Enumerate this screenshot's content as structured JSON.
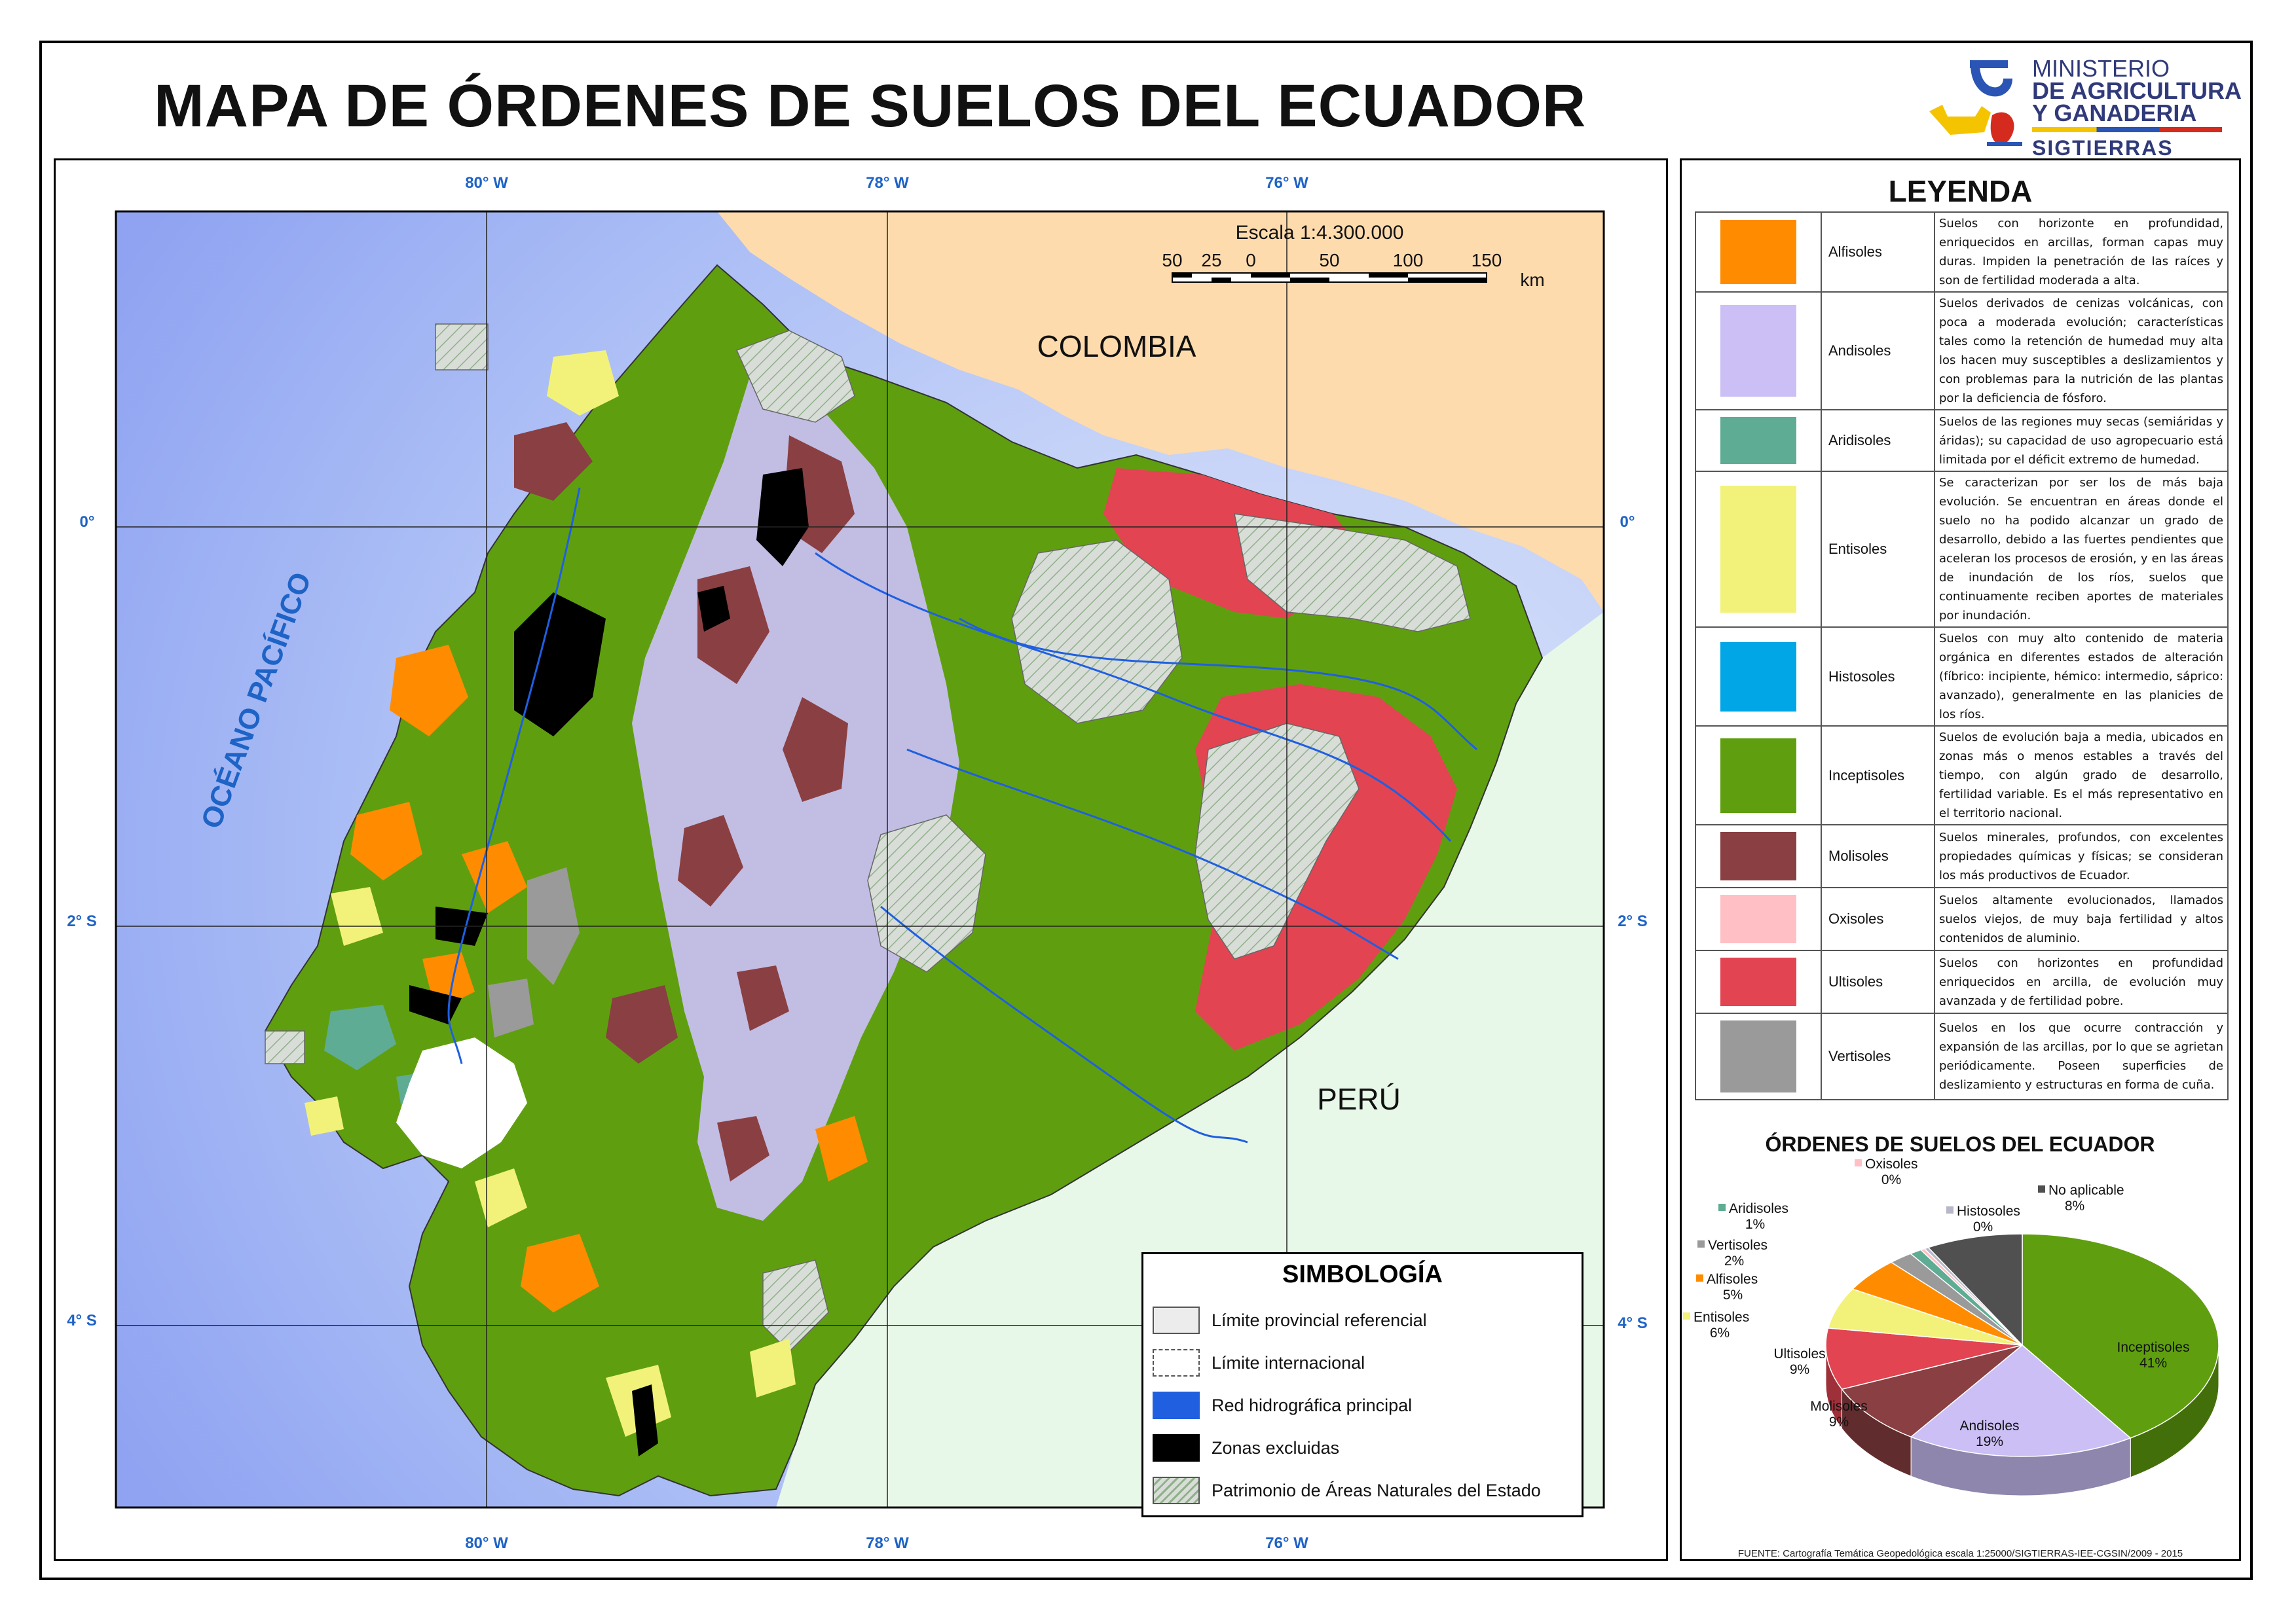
{
  "title": "MAPA DE ÓRDENES DE SUELOS DEL ECUADOR",
  "logo": {
    "line1": "MINISTERIO",
    "line2": "DE AGRICULTURA",
    "line3": "Y GANADERIA",
    "line4": "SIGTIERRAS"
  },
  "map": {
    "graticule_labels": {
      "top": [
        "80° W",
        "78° W",
        "76° W"
      ],
      "bottom": [
        "80° W",
        "78° W",
        "76° W"
      ],
      "left": [
        "0°",
        "2° S",
        "4° S"
      ],
      "right": [
        "0°",
        "2° S",
        "4° S"
      ]
    },
    "ocean_label": "OCÉANO PACÍFICO",
    "colombia_label": "COLOMBIA",
    "peru_label": "PERÚ",
    "scale": {
      "title": "Escala 1:4.300.000",
      "ticks": [
        "50",
        "25",
        "0",
        "50",
        "100",
        "150"
      ],
      "unit": "km"
    },
    "colors": {
      "ocean_deep": "#8fa3f2",
      "ocean_mid": "#a9bcf5",
      "ocean_light": "#c7d4f8",
      "colombia": "#fedbad",
      "peru": "#e8f8e8",
      "river": "#1f5fe0"
    }
  },
  "simbologia": {
    "title": "SIMBOLOGÍA",
    "items": [
      {
        "label": "Límite provincial referencial"
      },
      {
        "label": "Límite internacional"
      },
      {
        "label": "Red hidrográfica principal"
      },
      {
        "label": "Zonas excluidas"
      },
      {
        "label": "Patrimonio de Áreas Naturales del Estado"
      }
    ]
  },
  "legend": {
    "title": "LEYENDA",
    "rows": [
      {
        "name": "Alfisoles",
        "color": "#ff8c00",
        "desc": "Suelos con horizonte en profundidad, enriquecidos en arcillas, forman capas muy duras. Impiden la penetración de las raíces y son de fertilidad moderada a alta."
      },
      {
        "name": "Andisoles",
        "color": "#cbbff5",
        "desc": "Suelos derivados de cenizas volcánicas, con poca a moderada evolución; características tales como la retención de humedad muy alta los hacen muy susceptibles a deslizamientos y con problemas para la nutrición de las plantas por la deficiencia de fósforo."
      },
      {
        "name": "Aridisoles",
        "color": "#5fac94",
        "desc": "Suelos de las regiones muy secas (semiáridas y áridas); su capacidad de uso agropecuario está limitada por el déficit extremo de humedad."
      },
      {
        "name": "Entisoles",
        "color": "#f2f27a",
        "desc": "Se caracterizan por ser los de más baja evolución. Se encuentran en áreas donde el suelo no ha podido alcanzar un grado de desarrollo, debido a las fuertes pendientes que aceleran los procesos de erosión, y en las áreas de inundación de los ríos, suelos que continuamente reciben aportes de materiales por inundación."
      },
      {
        "name": "Histosoles",
        "color": "#00a6e6",
        "desc": "Suelos con muy alto contenido de materia orgánica en diferentes estados de alteración (fíbrico: incipiente, hémico: intermedio, sáprico: avanzado), generalmente en las planicies de los ríos."
      },
      {
        "name": "Inceptisoles",
        "color": "#5f9f0f",
        "desc": "Suelos de evolución baja a media, ubicados en zonas más o menos estables a través del tiempo, con algún grado de desarrollo, fertilidad variable. Es el más representativo en el territorio nacional."
      },
      {
        "name": "Molisoles",
        "color": "#8a3f42",
        "desc": "Suelos minerales, profundos, con excelentes propiedades químicas y físicas; se consideran los más productivos de Ecuador."
      },
      {
        "name": "Oxisoles",
        "color": "#ffbfc4",
        "desc": "Suelos altamente evolucionados, llamados suelos viejos, de muy baja fertilidad y altos contenidos de aluminio."
      },
      {
        "name": "Ultisoles",
        "color": "#e24452",
        "desc": "Suelos con horizontes en profundidad enriquecidos en arcilla, de evolución muy avanzada y de fertilidad pobre."
      },
      {
        "name": "Vertisoles",
        "color": "#9a9a9a",
        "desc": "Suelos en los que ocurre contracción y expansión de las arcillas, por lo que se agrietan periódicamente. Poseen superficies de deslizamiento y estructuras en forma de cuña."
      }
    ]
  },
  "chart_data": {
    "type": "pie",
    "title": "ÓRDENES DE SUELOS DEL ECUADOR",
    "slices": [
      {
        "name": "Inceptisoles",
        "value": 41,
        "label": "41%",
        "color": "#5f9f0f"
      },
      {
        "name": "Andisoles",
        "value": 19,
        "label": "19%",
        "color": "#cbbff5"
      },
      {
        "name": "Molisoles",
        "value": 9,
        "label": "9%",
        "color": "#8a3f42"
      },
      {
        "name": "Ultisoles",
        "value": 9,
        "label": "9%",
        "color": "#e24452"
      },
      {
        "name": "Entisoles",
        "value": 6,
        "label": "6%",
        "color": "#f2f27a"
      },
      {
        "name": "Alfisoles",
        "value": 5,
        "label": "5%",
        "color": "#ff8c00"
      },
      {
        "name": "Vertisoles",
        "value": 2,
        "label": "2%",
        "color": "#9a9a9a"
      },
      {
        "name": "Aridisoles",
        "value": 1,
        "label": "1%",
        "color": "#5fac94"
      },
      {
        "name": "Oxisoles",
        "value": 0,
        "label": "0%",
        "color": "#ffbfc4"
      },
      {
        "name": "Histosoles",
        "value": 0,
        "label": "0%",
        "color": "#b7b7c8"
      },
      {
        "name": "No aplicable",
        "value": 8,
        "label": "8%",
        "color": "#505050"
      }
    ]
  },
  "source": "FUENTE: Cartografía Temática Geopedológica escala 1:25000/SIGTIERRAS-IEE-CGSIN/2009 - 2015"
}
